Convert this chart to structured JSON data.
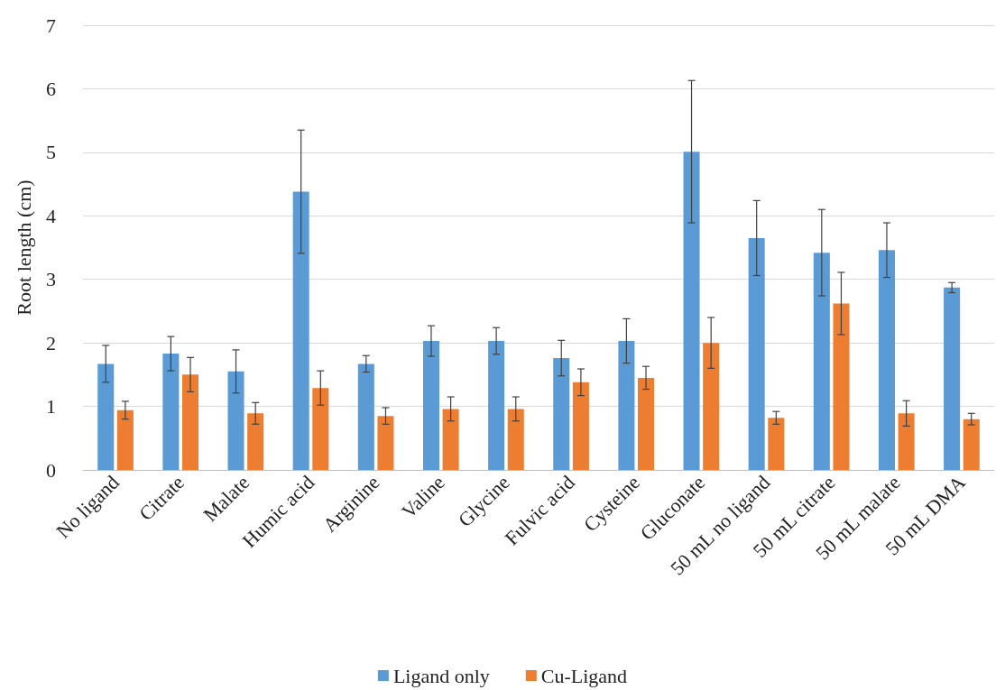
{
  "chart_data": {
    "type": "bar",
    "ylabel": "Root length (cm)",
    "categories": [
      "No ligand",
      "Citrate",
      "Malate",
      "Humic acid",
      "Arginine",
      "Valine",
      "Glycine",
      "Fulvic acid",
      "Cysteine",
      "Gluconate",
      "50 mL no ligand",
      "50 mL citrate",
      "50 mL malate",
      "50 mL DMA"
    ],
    "series": [
      {
        "name": "Ligand only",
        "color": "#5b9bd5",
        "values": [
          1.67,
          1.83,
          1.55,
          4.38,
          1.67,
          2.03,
          2.03,
          1.76,
          2.03,
          5.01,
          3.65,
          3.42,
          3.46,
          2.87
        ],
        "errors": [
          0.29,
          0.27,
          0.34,
          0.97,
          0.13,
          0.24,
          0.21,
          0.28,
          0.35,
          1.12,
          0.59,
          0.68,
          0.43,
          0.08
        ]
      },
      {
        "name": "Cu-Ligand",
        "color": "#ed7d31",
        "values": [
          0.94,
          1.5,
          0.89,
          1.29,
          0.85,
          0.96,
          0.96,
          1.38,
          1.45,
          2.0,
          0.82,
          2.62,
          0.89,
          0.8
        ],
        "errors": [
          0.14,
          0.27,
          0.17,
          0.27,
          0.13,
          0.19,
          0.19,
          0.21,
          0.18,
          0.4,
          0.1,
          0.49,
          0.2,
          0.09
        ]
      }
    ],
    "ylim": [
      0,
      7
    ],
    "yticks": [
      0,
      1,
      2,
      3,
      4,
      5,
      6,
      7
    ],
    "grid": "y",
    "legend": "bottom"
  }
}
